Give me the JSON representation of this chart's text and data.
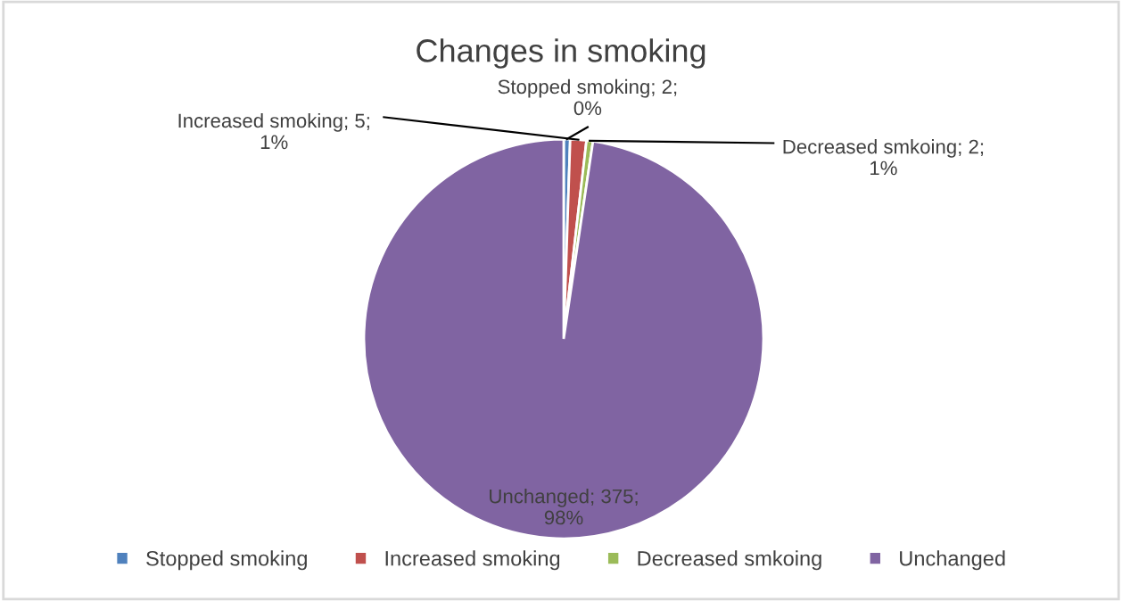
{
  "chart_data": {
    "type": "pie",
    "title": "Changes in smoking",
    "categories": [
      "Stopped smoking",
      "Increased smoking",
      "Decreased smkoing",
      "Unchanged"
    ],
    "values": [
      2,
      5,
      2,
      375
    ],
    "colors": [
      "#4f81bd",
      "#c0504d",
      "#9bbb59",
      "#8064a2"
    ],
    "value_labels": [
      "Stopped smoking; 2; 0%",
      "Increased smoking; 5; 1%",
      "Decreased smkoing; 2; 1%",
      "Unchanged; 375; 98%"
    ],
    "legend": "bottom"
  }
}
